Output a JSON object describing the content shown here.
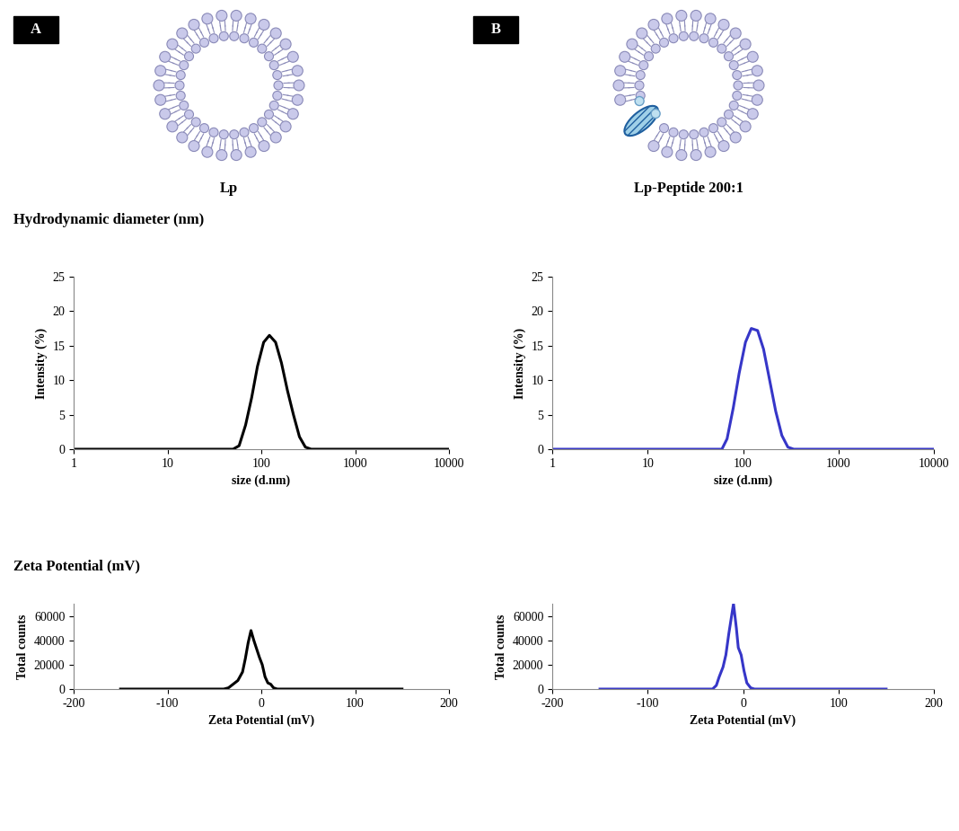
{
  "panels": [
    {
      "letter": "A",
      "label": "Lp"
    },
    {
      "letter": "B",
      "label": "Lp-Peptide 200:1"
    }
  ],
  "sections": [
    "Hydrodynamic diameter (nm)",
    "Zeta Potential (mV)"
  ],
  "chart_data": [
    {
      "type": "line",
      "xlabel": "size (d.nm)",
      "ylabel": "Intensity (%)",
      "log": "x",
      "color": "#000000",
      "x": [
        1,
        50,
        58,
        68,
        79,
        91,
        106,
        122,
        142,
        164,
        190,
        220,
        255,
        295,
        340,
        10000
      ],
      "values": [
        0,
        0,
        0.5,
        3.5,
        7.5,
        12,
        15.5,
        16.5,
        15.5,
        12.5,
        8.5,
        5,
        1.8,
        0.3,
        0,
        0
      ],
      "xlim": [
        1,
        10000
      ],
      "xticks": [
        1,
        10,
        100,
        1000,
        10000
      ],
      "ylim": [
        0,
        25
      ],
      "yticks": [
        0,
        5,
        10,
        15,
        20,
        25
      ]
    },
    {
      "type": "line",
      "xlabel": "size (d.nm)",
      "ylabel": "Intensity (%)",
      "log": "x",
      "color": "#3636c8",
      "x": [
        1,
        60,
        68,
        79,
        91,
        106,
        122,
        142,
        164,
        190,
        220,
        255,
        295,
        340,
        10000
      ],
      "values": [
        0,
        0,
        1.5,
        6,
        11,
        15.5,
        17.5,
        17.2,
        14.5,
        10,
        5.5,
        2,
        0.3,
        0,
        0
      ],
      "xlim": [
        1,
        10000
      ],
      "xticks": [
        1,
        10,
        100,
        1000,
        10000
      ],
      "ylim": [
        0,
        25
      ],
      "yticks": [
        0,
        5,
        10,
        15,
        20,
        25
      ]
    },
    {
      "type": "line",
      "xlabel": "Zeta Potential (mV)",
      "ylabel": "Total counts",
      "color": "#000000",
      "x": [
        -150,
        -40,
        -35,
        -30,
        -25,
        -20,
        -17,
        -14,
        -11,
        -8,
        -5,
        -2,
        1,
        4,
        7,
        10,
        13,
        17,
        150
      ],
      "values": [
        0,
        0,
        1000,
        4000,
        7000,
        14000,
        25000,
        38000,
        48000,
        40000,
        33000,
        26000,
        20000,
        10000,
        5000,
        4000,
        1000,
        0,
        0
      ],
      "xlim": [
        -200,
        200
      ],
      "xticks": [
        -200,
        -100,
        0,
        100,
        200
      ],
      "ylim": [
        0,
        70000
      ],
      "yticks": [
        0,
        20000,
        40000,
        60000
      ]
    },
    {
      "type": "line",
      "xlabel": "Zeta Potential (mV)",
      "ylabel": "Total counts",
      "color": "#3636c8",
      "x": [
        -150,
        -32,
        -28,
        -25,
        -21,
        -18,
        -15,
        -12,
        -10,
        -7,
        -5,
        -2,
        1,
        4,
        8,
        12,
        150
      ],
      "values": [
        0,
        0,
        3000,
        10000,
        18000,
        28000,
        45000,
        60000,
        70000,
        50000,
        34000,
        28000,
        15000,
        5000,
        1000,
        0,
        0
      ],
      "xlim": [
        -200,
        200
      ],
      "xticks": [
        -200,
        -100,
        0,
        100,
        200
      ],
      "ylim": [
        0,
        70000
      ],
      "yticks": [
        0,
        20000,
        40000,
        60000
      ]
    }
  ]
}
